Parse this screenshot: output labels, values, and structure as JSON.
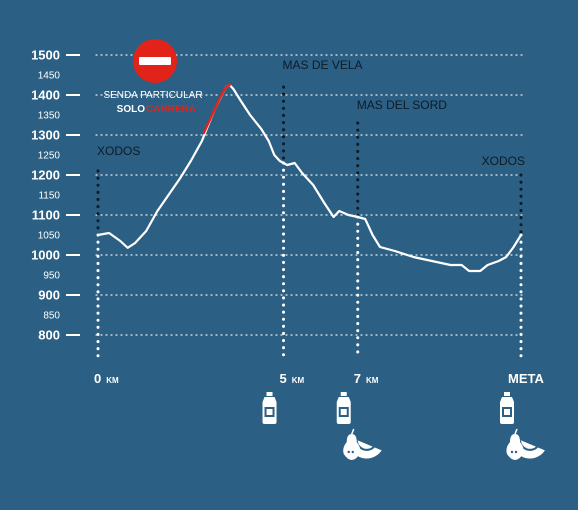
{
  "chart_data": {
    "type": "line",
    "x_unit": "km",
    "y_ticks_major": [
      1500,
      1400,
      1300,
      1200,
      1100,
      1000,
      900,
      800
    ],
    "y_ticks_minor": [
      1450,
      1350,
      1250,
      1150,
      1050,
      950,
      850
    ],
    "ylim": [
      800,
      1500
    ],
    "xlim": [
      0,
      11.4
    ],
    "grid": true,
    "series": [
      {
        "points": [
          [
            0,
            1050
          ],
          [
            0.3,
            1055
          ],
          [
            0.6,
            1035
          ],
          [
            0.8,
            1018
          ],
          [
            1.0,
            1030
          ],
          [
            1.3,
            1060
          ],
          [
            1.6,
            1110
          ],
          [
            1.9,
            1150
          ],
          [
            2.2,
            1190
          ],
          [
            2.5,
            1235
          ],
          [
            2.8,
            1285
          ],
          [
            2.95,
            1320
          ],
          [
            3.15,
            1365
          ],
          [
            3.3,
            1393
          ],
          [
            3.45,
            1420
          ],
          [
            3.55,
            1425
          ],
          [
            3.65,
            1415
          ],
          [
            3.85,
            1385
          ],
          [
            4.1,
            1350
          ],
          [
            4.4,
            1315
          ],
          [
            4.6,
            1285
          ],
          [
            4.75,
            1250
          ],
          [
            4.9,
            1235
          ],
          [
            5.1,
            1225
          ],
          [
            5.3,
            1230
          ],
          [
            5.5,
            1205
          ],
          [
            5.8,
            1175
          ],
          [
            6.1,
            1130
          ],
          [
            6.35,
            1095
          ],
          [
            6.5,
            1110
          ],
          [
            6.75,
            1100
          ],
          [
            7.0,
            1095
          ],
          [
            7.2,
            1090
          ],
          [
            7.4,
            1050
          ],
          [
            7.6,
            1020
          ],
          [
            8.0,
            1010
          ],
          [
            8.5,
            995
          ],
          [
            9.0,
            985
          ],
          [
            9.5,
            975
          ],
          [
            9.8,
            975
          ],
          [
            10.0,
            960
          ],
          [
            10.3,
            960
          ],
          [
            10.5,
            975
          ],
          [
            10.8,
            985
          ],
          [
            11.0,
            995
          ],
          [
            11.2,
            1020
          ],
          [
            11.4,
            1050
          ]
        ]
      },
      {
        "points": [
          [
            2.85,
            1305
          ],
          [
            3.05,
            1345
          ],
          [
            3.3,
            1395
          ],
          [
            3.45,
            1420
          ],
          [
            3.55,
            1425
          ]
        ]
      }
    ],
    "markers": [
      {
        "x": 0,
        "label": "XODOS",
        "label_y": 1250,
        "top": 1210
      },
      {
        "x": 5,
        "label": "MAS DE VELA",
        "label_y": 1465,
        "top": 1420
      },
      {
        "x": 7,
        "label": "MAS DEL SORD",
        "label_y": 1365,
        "top": 1330
      },
      {
        "x": 11.4,
        "label": "XODOS",
        "label_y": 1225,
        "top": 1200
      }
    ],
    "x_labels": [
      {
        "x": 0,
        "value": "0",
        "unit": "km"
      },
      {
        "x": 5,
        "value": "5",
        "unit": "km"
      },
      {
        "x": 7,
        "value": "7",
        "unit": "km"
      },
      {
        "x": 11.4,
        "value": "META",
        "unit": ""
      }
    ],
    "warning": {
      "line1": "SENDA PARTICULAR",
      "line2a": "SOLO",
      "line2b": "CARRERA"
    },
    "supply": [
      {
        "x": 5,
        "items": [
          "water-bottle"
        ]
      },
      {
        "x": 7,
        "items": [
          "water-bottle",
          "fruit"
        ]
      },
      {
        "x": 11.4,
        "items": [
          "water-bottle",
          "fruit"
        ]
      }
    ],
    "colors": {
      "background": "#2c5f84",
      "line": "#ffffff",
      "highlight": "#e2231a",
      "label": "#0d1b26"
    },
    "icons": [
      "no-entry-icon",
      "water-bottle-icon",
      "watermelon-icon",
      "pear-icon"
    ]
  }
}
